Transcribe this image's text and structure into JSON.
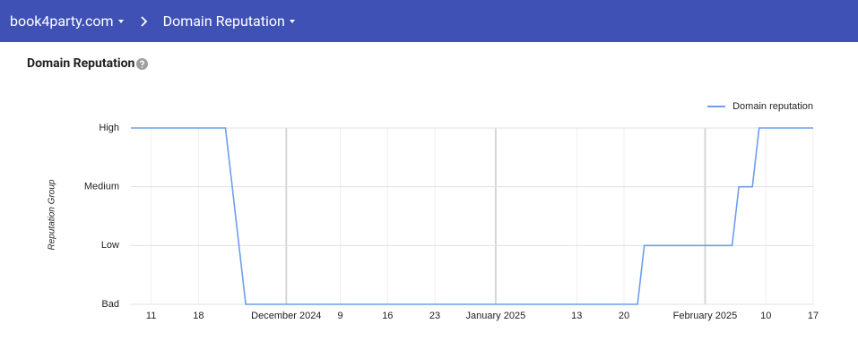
{
  "header": {
    "breadcrumbs": [
      "book4party.com",
      "Domain Reputation"
    ]
  },
  "page_title": "Domain Reputation",
  "chart_data": {
    "type": "line",
    "y_label": "Reputation Group",
    "x": [
      "2024-11-08",
      "2024-11-22",
      "2024-11-25",
      "2025-01-22",
      "2025-01-23",
      "2025-02-05",
      "2025-02-06",
      "2025-02-08",
      "2025-02-09",
      "2025-02-17"
    ],
    "series": [
      {
        "name": "Domain reputation",
        "color": "#6d9eeb",
        "values": [
          3,
          3,
          0,
          0,
          1,
          1,
          2,
          2,
          3,
          3
        ]
      }
    ],
    "xlim": [
      "2024-11-08",
      "2025-02-17"
    ],
    "xticks": [
      {
        "value": "2024-11-11",
        "label": "11"
      },
      {
        "value": "2024-11-18",
        "label": "18"
      },
      {
        "value": "2024-12-01",
        "label": "December 2024"
      },
      {
        "value": "2024-12-09",
        "label": "9"
      },
      {
        "value": "2024-12-16",
        "label": "16"
      },
      {
        "value": "2024-12-23",
        "label": "23"
      },
      {
        "value": "2025-01-01",
        "label": "January 2025"
      },
      {
        "value": "2025-01-13",
        "label": "13"
      },
      {
        "value": "2025-01-20",
        "label": "20"
      },
      {
        "value": "2025-02-01",
        "label": "February 2025"
      },
      {
        "value": "2025-02-10",
        "label": "10"
      },
      {
        "value": "2025-02-17",
        "label": "17"
      }
    ],
    "ylim": [
      0,
      3
    ],
    "yticks": [
      {
        "value": 0,
        "label": "Bad"
      },
      {
        "value": 1,
        "label": "Low"
      },
      {
        "value": 2,
        "label": "Medium"
      },
      {
        "value": 3,
        "label": "High"
      }
    ],
    "grid": true,
    "legend": "top-right"
  }
}
